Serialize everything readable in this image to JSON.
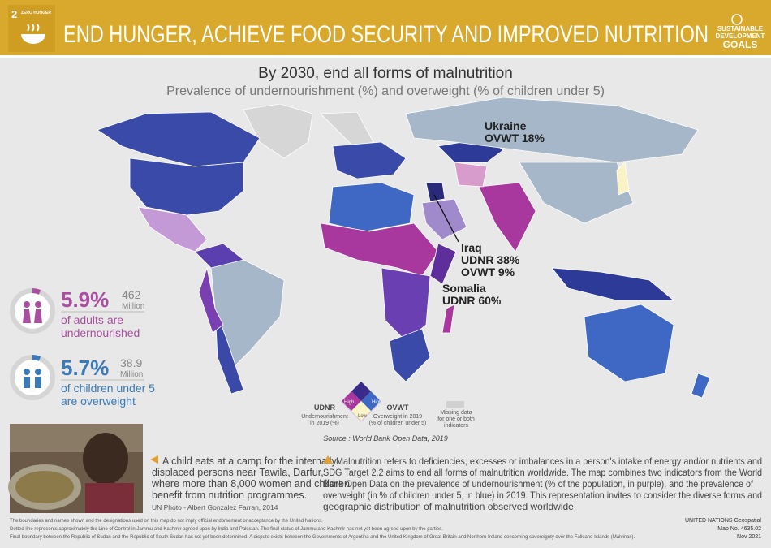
{
  "header": {
    "goal_number": "2",
    "goal_label": "ZERO HUNGER",
    "title": "END HUNGER, ACHIEVE FOOD SECURITY AND IMPROVED NUTRITION",
    "sdg_logo": [
      "SUSTAINABLE",
      "DEVELOPMENT",
      "GOALS"
    ]
  },
  "heading": {
    "title": "By 2030, end all forms of malnutrition",
    "subtitle": "Prevalence of undernourishment (%) and overweight (% of children under 5)"
  },
  "annotations": [
    {
      "name": "Ukraine",
      "lines": [
        "OVWT 18%"
      ]
    },
    {
      "name": "Iraq",
      "lines": [
        "UDNR 38%",
        "OVWT 9%"
      ]
    },
    {
      "name": "Somalia",
      "lines": [
        "UDNR 60%"
      ]
    }
  ],
  "stats": [
    {
      "value": "5.9%",
      "count": "462",
      "unit": "Million",
      "label": [
        "of adults are",
        "undernourished"
      ]
    },
    {
      "value": "5.7%",
      "count": "38.9",
      "unit": "Million",
      "label": [
        "of children under 5",
        "are overweight"
      ]
    }
  ],
  "legend": {
    "udnr": "UDNR",
    "udnr_desc": [
      "Undernourishment",
      "in 2019 (%)"
    ],
    "high_left": "High",
    "high_right": "High",
    "low": "Low",
    "ovwt": "OVWT",
    "ovwt_desc": [
      "Overweight in 2019",
      "(% of children under 5)"
    ],
    "missing": [
      "Missing data",
      "for one or both",
      "indicators"
    ]
  },
  "source": "Source : World Bank Open Data, 2019",
  "caption": {
    "lines": [
      "A child eats at a camp for the internally",
      "displaced persons near Tawila, Darfur,",
      "where more than 8,000 women and children",
      "benefit from nutrition programmes."
    ],
    "credit": "UN Photo - Albert Gonzalez Farran, 2014"
  },
  "description": [
    "Malnutrition refers to deficiencies, excesses or imbalances in a person's intake of energy and/or nutrients and",
    "SDG Target 2.2 aims to end all forms of malnutrition worldwide. The map combines two indicators from the World",
    "Bank Open Data on the prevalence of undernourishment (% of the population, in purple), and the prevalence of",
    "overweight (in % of children under 5, in blue) in 2019. This representation invites to consider the diverse forms and",
    "geographic distribution of malnutrition observed worldwide."
  ],
  "footer": {
    "notes": [
      "The boundaries and names shown and the designations used on this map do not imply official endorsement or acceptance by the United Nations.",
      "Dotted line represents approximately the Line of Control in Jammu and Kashmir agreed upon by India and Pakistan. The final status of Jammu and Kashmir has not yet been agreed upon by the parties.",
      "Final boundary between the Republic of Sudan and the Republic of South Sudan has not yet been determined. A dispute exists between the Governments of Argentina and the United Kingdom of Great Britain and Northern Ireland concerning sovereignty over the Falkland Islands (Malvinas)."
    ],
    "credits": [
      "UNITED NATIONS Geospatial",
      "Map No. 4635.02",
      "Nov 2021"
    ]
  }
}
